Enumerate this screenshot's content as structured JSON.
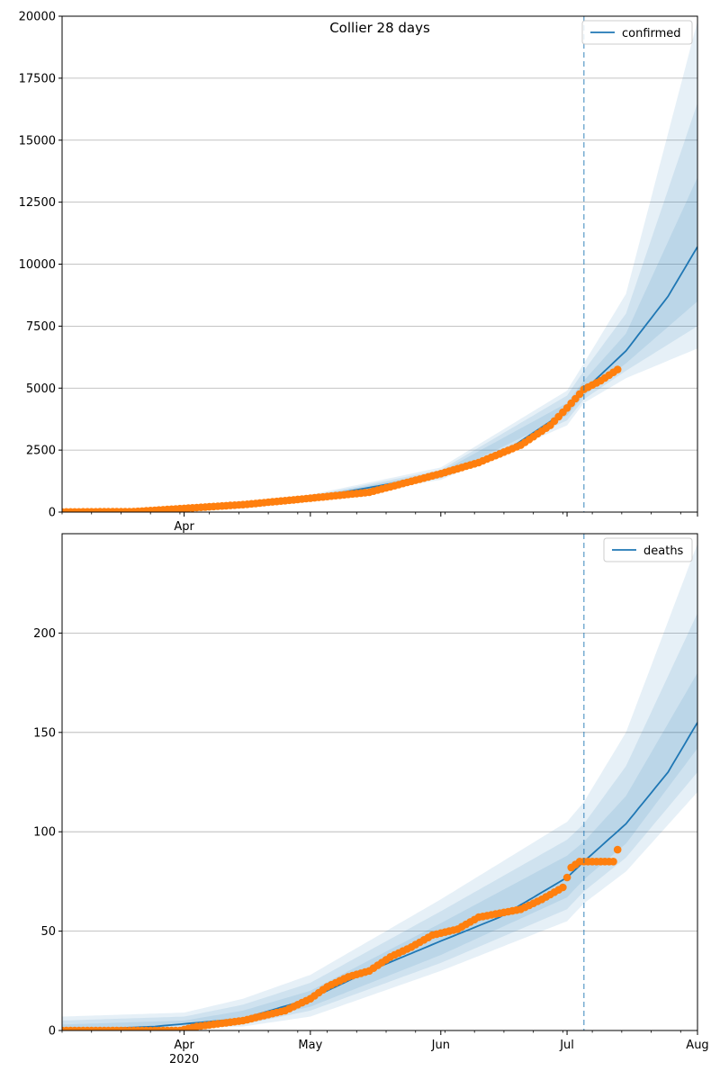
{
  "chart_data": [
    {
      "type": "line",
      "title": "Collier 28 days",
      "series_name": "confirmed",
      "legend_position": "top-right",
      "grid": "y",
      "ylim": [
        0,
        20000
      ],
      "yticks": [
        0,
        2500,
        5000,
        7500,
        10000,
        12500,
        15000,
        17500,
        20000
      ],
      "xlim": [
        "2020-03-03",
        "2020-08-01"
      ],
      "xticks": [
        {
          "date": "2020-04-01",
          "label": "Apr",
          "sublabel": ""
        },
        {
          "date": "2020-05-01",
          "label": "",
          "sublabel": ""
        },
        {
          "date": "2020-06-01",
          "label": "",
          "sublabel": ""
        },
        {
          "date": "2020-07-01",
          "label": "",
          "sublabel": ""
        },
        {
          "date": "2020-08-01",
          "label": "",
          "sublabel": ""
        }
      ],
      "forecast_start": "2020-07-05",
      "observed": {
        "start": "2020-03-03",
        "end": "2020-07-13",
        "points": [
          [
            "2020-03-03",
            5
          ],
          [
            "2020-03-20",
            20
          ],
          [
            "2020-04-01",
            150
          ],
          [
            "2020-04-15",
            300
          ],
          [
            "2020-05-01",
            560
          ],
          [
            "2020-05-15",
            800
          ],
          [
            "2020-06-01",
            1550
          ],
          [
            "2020-06-10",
            2000
          ],
          [
            "2020-06-20",
            2700
          ],
          [
            "2020-06-27",
            3500
          ],
          [
            "2020-07-01",
            4200
          ],
          [
            "2020-07-05",
            4950
          ],
          [
            "2020-07-09",
            5300
          ],
          [
            "2020-07-13",
            5750
          ]
        ]
      },
      "median": {
        "start": "2020-03-03",
        "end": "2020-08-01",
        "points": [
          [
            "2020-03-03",
            5
          ],
          [
            "2020-04-01",
            150
          ],
          [
            "2020-05-01",
            570
          ],
          [
            "2020-06-01",
            1500
          ],
          [
            "2020-06-15",
            2300
          ],
          [
            "2020-07-01",
            4100
          ],
          [
            "2020-07-05",
            4900
          ],
          [
            "2020-07-15",
            6500
          ],
          [
            "2020-07-25",
            8700
          ],
          [
            "2020-08-01",
            10700
          ]
        ]
      },
      "bands": [
        {
          "lower": [
            [
              "2020-03-03",
              0
            ],
            [
              "2020-04-01",
              130
            ],
            [
              "2020-05-01",
              500
            ],
            [
              "2020-06-01",
              1300
            ],
            [
              "2020-07-01",
              3500
            ],
            [
              "2020-07-05",
              4400
            ],
            [
              "2020-07-15",
              5400
            ],
            [
              "2020-08-01",
              6600
            ]
          ],
          "upper": [
            [
              "2020-03-03",
              40
            ],
            [
              "2020-04-01",
              190
            ],
            [
              "2020-05-01",
              700
            ],
            [
              "2020-06-01",
              1800
            ],
            [
              "2020-07-01",
              4900
            ],
            [
              "2020-07-05",
              6000
            ],
            [
              "2020-07-15",
              8800
            ],
            [
              "2020-08-01",
              19800
            ]
          ]
        },
        {
          "lower": [
            [
              "2020-03-03",
              0
            ],
            [
              "2020-04-01",
              135
            ],
            [
              "2020-05-01",
              520
            ],
            [
              "2020-06-01",
              1360
            ],
            [
              "2020-07-01",
              3700
            ],
            [
              "2020-07-05",
              4550
            ],
            [
              "2020-07-15",
              5700
            ],
            [
              "2020-08-01",
              7500
            ]
          ],
          "upper": [
            [
              "2020-03-03",
              30
            ],
            [
              "2020-04-01",
              180
            ],
            [
              "2020-05-01",
              660
            ],
            [
              "2020-06-01",
              1700
            ],
            [
              "2020-07-01",
              4700
            ],
            [
              "2020-07-05",
              5700
            ],
            [
              "2020-07-15",
              8000
            ],
            [
              "2020-08-01",
              16500
            ]
          ]
        },
        {
          "lower": [
            [
              "2020-03-03",
              0
            ],
            [
              "2020-04-01",
              140
            ],
            [
              "2020-05-01",
              540
            ],
            [
              "2020-06-01",
              1420
            ],
            [
              "2020-07-01",
              3900
            ],
            [
              "2020-07-05",
              4700
            ],
            [
              "2020-07-15",
              6000
            ],
            [
              "2020-08-01",
              8500
            ]
          ],
          "upper": [
            [
              "2020-03-03",
              20
            ],
            [
              "2020-04-01",
              170
            ],
            [
              "2020-05-01",
              620
            ],
            [
              "2020-06-01",
              1620
            ],
            [
              "2020-07-01",
              4400
            ],
            [
              "2020-07-05",
              5300
            ],
            [
              "2020-07-15",
              7200
            ],
            [
              "2020-08-01",
              13500
            ]
          ]
        }
      ]
    },
    {
      "type": "line",
      "title": "",
      "series_name": "deaths",
      "legend_position": "top-right",
      "grid": "y",
      "ylim": [
        0,
        250
      ],
      "yticks": [
        0,
        50,
        100,
        150,
        200
      ],
      "xlim": [
        "2020-03-03",
        "2020-08-01"
      ],
      "xticks": [
        {
          "date": "2020-04-01",
          "label": "Apr",
          "sublabel": "2020"
        },
        {
          "date": "2020-05-01",
          "label": "May",
          "sublabel": ""
        },
        {
          "date": "2020-06-01",
          "label": "Jun",
          "sublabel": ""
        },
        {
          "date": "2020-07-01",
          "label": "Jul",
          "sublabel": ""
        },
        {
          "date": "2020-08-01",
          "label": "Aug",
          "sublabel": ""
        }
      ],
      "forecast_start": "2020-07-05",
      "observed": {
        "start": "2020-03-03",
        "end": "2020-07-13",
        "points": [
          [
            "2020-03-03",
            0
          ],
          [
            "2020-03-31",
            0
          ],
          [
            "2020-04-04",
            2
          ],
          [
            "2020-04-15",
            5
          ],
          [
            "2020-04-25",
            10
          ],
          [
            "2020-05-01",
            16
          ],
          [
            "2020-05-05",
            22
          ],
          [
            "2020-05-10",
            27
          ],
          [
            "2020-05-15",
            30
          ],
          [
            "2020-05-20",
            37
          ],
          [
            "2020-05-25",
            42
          ],
          [
            "2020-05-30",
            48
          ],
          [
            "2020-06-05",
            51
          ],
          [
            "2020-06-10",
            57
          ],
          [
            "2020-06-15",
            59
          ],
          [
            "2020-06-20",
            61
          ],
          [
            "2020-06-25",
            66
          ],
          [
            "2020-06-30",
            72
          ],
          [
            "2020-07-02",
            82
          ],
          [
            "2020-07-04",
            85
          ],
          [
            "2020-07-12",
            85
          ],
          [
            "2020-07-13",
            91
          ]
        ]
      },
      "median": {
        "start": "2020-03-03",
        "end": "2020-08-01",
        "points": [
          [
            "2020-03-03",
            0
          ],
          [
            "2020-03-25",
            2
          ],
          [
            "2020-04-15",
            6
          ],
          [
            "2020-05-01",
            16
          ],
          [
            "2020-05-15",
            30
          ],
          [
            "2020-06-01",
            45
          ],
          [
            "2020-06-15",
            57
          ],
          [
            "2020-07-01",
            77
          ],
          [
            "2020-07-05",
            85
          ],
          [
            "2020-07-15",
            104
          ],
          [
            "2020-07-25",
            130
          ],
          [
            "2020-08-01",
            155
          ]
        ]
      },
      "bands": [
        {
          "lower": [
            [
              "2020-03-03",
              0
            ],
            [
              "2020-04-15",
              2
            ],
            [
              "2020-05-01",
              7
            ],
            [
              "2020-06-01",
              30
            ],
            [
              "2020-07-01",
              55
            ],
            [
              "2020-07-05",
              64
            ],
            [
              "2020-07-15",
              80
            ],
            [
              "2020-08-01",
              120
            ]
          ],
          "upper": [
            [
              "2020-03-03",
              7
            ],
            [
              "2020-04-01",
              9
            ],
            [
              "2020-04-15",
              16
            ],
            [
              "2020-05-01",
              28
            ],
            [
              "2020-06-01",
              66
            ],
            [
              "2020-07-01",
              105
            ],
            [
              "2020-07-05",
              115
            ],
            [
              "2020-07-15",
              150
            ],
            [
              "2020-08-01",
              245
            ]
          ]
        },
        {
          "lower": [
            [
              "2020-03-03",
              0
            ],
            [
              "2020-04-15",
              3
            ],
            [
              "2020-05-01",
              10
            ],
            [
              "2020-06-01",
              34
            ],
            [
              "2020-07-01",
              61
            ],
            [
              "2020-07-05",
              70
            ],
            [
              "2020-07-15",
              87
            ],
            [
              "2020-08-01",
              130
            ]
          ],
          "upper": [
            [
              "2020-03-03",
              5
            ],
            [
              "2020-04-01",
              7
            ],
            [
              "2020-04-15",
              13
            ],
            [
              "2020-05-01",
              24
            ],
            [
              "2020-06-01",
              60
            ],
            [
              "2020-07-01",
              96
            ],
            [
              "2020-07-05",
              104
            ],
            [
              "2020-07-15",
              133
            ],
            [
              "2020-08-01",
              210
            ]
          ]
        },
        {
          "lower": [
            [
              "2020-03-03",
              0
            ],
            [
              "2020-04-15",
              4
            ],
            [
              "2020-05-01",
              12
            ],
            [
              "2020-06-01",
              38
            ],
            [
              "2020-07-01",
              67
            ],
            [
              "2020-07-05",
              76
            ],
            [
              "2020-07-15",
              94
            ],
            [
              "2020-08-01",
              142
            ]
          ],
          "upper": [
            [
              "2020-03-03",
              3
            ],
            [
              "2020-04-01",
              5
            ],
            [
              "2020-04-15",
              10
            ],
            [
              "2020-05-01",
              20
            ],
            [
              "2020-06-01",
              54
            ],
            [
              "2020-07-01",
              88
            ],
            [
              "2020-07-05",
              95
            ],
            [
              "2020-07-15",
              118
            ],
            [
              "2020-08-01",
              180
            ]
          ]
        }
      ]
    }
  ],
  "colors": {
    "median_line": "#1f77b4",
    "observed_points": "#ff7f0e",
    "band": "#1f77b4",
    "forecast_line": "#1f77b4",
    "grid": "#b0b0b0"
  }
}
